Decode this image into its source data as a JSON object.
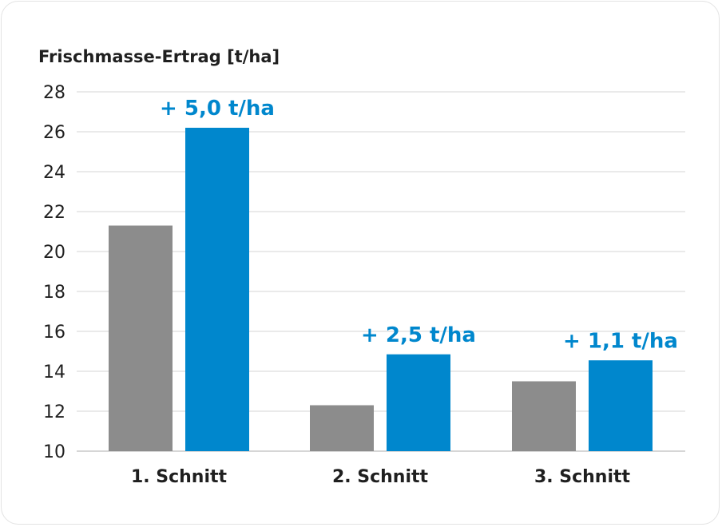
{
  "chart_data": {
    "type": "bar",
    "ylabel": "Frischmasse-Ertrag [t/ha]",
    "ylim": [
      10,
      28
    ],
    "yticks": [
      10,
      12,
      14,
      16,
      18,
      20,
      22,
      24,
      26,
      28
    ],
    "categories": [
      "1. Schnitt",
      "2. Schnitt",
      "3. Schnitt"
    ],
    "series": [
      {
        "values": [
          21.3,
          12.3,
          13.5
        ],
        "color": "#8c8c8c"
      },
      {
        "values": [
          26.2,
          14.85,
          14.55
        ],
        "color": "#0087cd"
      }
    ],
    "annotations": [
      "+ 5,0 t/ha",
      "+ 2,5 t/ha",
      "+ 1,1 t/ha"
    ],
    "annotation_color": "#0087cd",
    "grid": true,
    "legend": "none"
  }
}
